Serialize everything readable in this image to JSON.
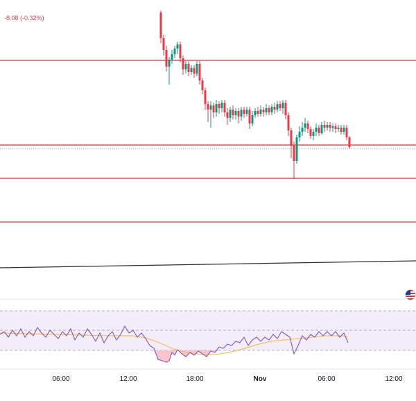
{
  "price_change": "-8.08 (-0.32%)",
  "time_axis": {
    "labels": [
      "06:00",
      "12:00",
      "18:00",
      "Nov",
      "06:00",
      "12:00"
    ]
  },
  "colors": {
    "up": "#089981",
    "down": "#f23645",
    "level": "#e23232",
    "trendline": "#2a2e39",
    "rsi_line": "#7e57c2",
    "rsi_ma": "#f5c04b",
    "rsi_band": "#ede7f6",
    "oversold_fill": "#f8c4cd"
  },
  "indicators": {
    "flag_icon": "us-flag-icon"
  }
}
